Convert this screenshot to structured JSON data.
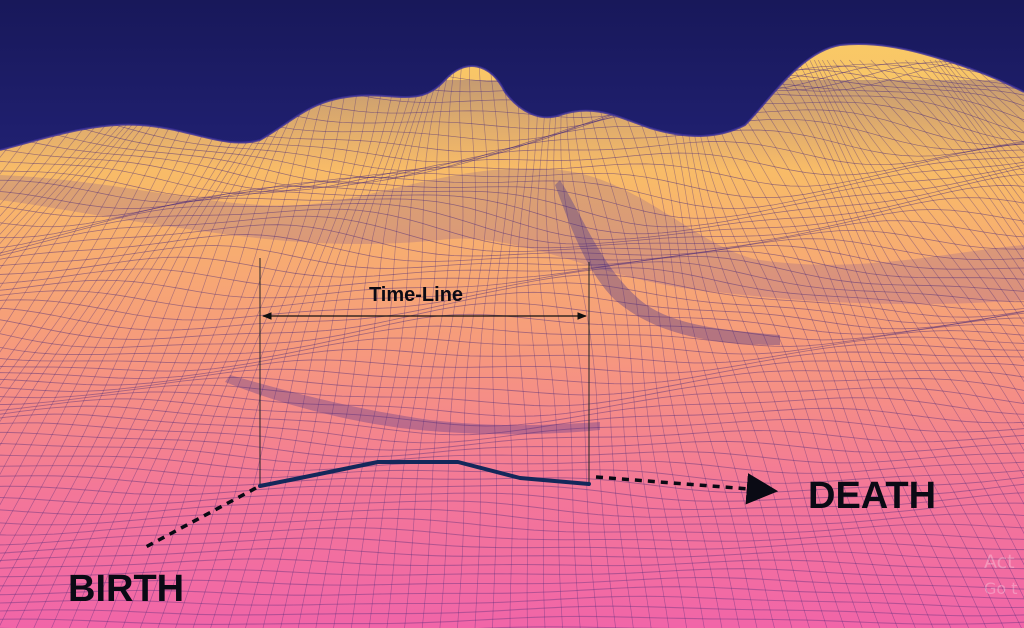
{
  "labels": {
    "timeline": "Time-Line",
    "birth": "BIRTH",
    "death": "DEATH"
  },
  "watermark": {
    "line1": "Act",
    "line2": "Go t"
  },
  "colors": {
    "sky_top": "#1a1a5e",
    "sky_mid": "#3a3aa8",
    "terrain_far": "#f7c064",
    "terrain_mid": "#f7a070",
    "terrain_near": "#f36aa8",
    "mesh_line": "#4a2a7a",
    "life_path": "#14285a",
    "label_text": "#0a0a14"
  }
}
